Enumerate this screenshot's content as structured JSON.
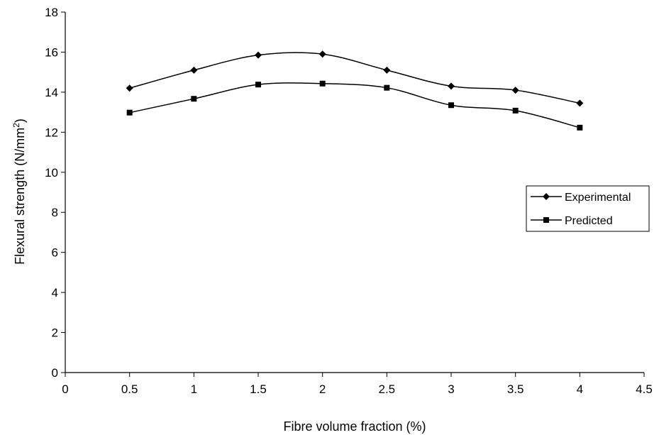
{
  "chart_data": {
    "type": "line",
    "xlabel": "Fibre volume fraction (%)",
    "ylabel": {
      "base": "Flexural strength (N/mm",
      "superscript": "2",
      "close": ")"
    },
    "xlim": [
      0,
      4.5
    ],
    "ylim": [
      0,
      18
    ],
    "x_ticks": [
      "0",
      "0.5",
      "1",
      "1.5",
      "2",
      "2.5",
      "3",
      "3.5",
      "4",
      "4.5"
    ],
    "y_ticks": [
      "0",
      "2",
      "4",
      "6",
      "8",
      "10",
      "12",
      "14",
      "16",
      "18"
    ],
    "x": [
      0.5,
      1,
      1.5,
      2,
      2.5,
      3,
      3.5,
      4
    ],
    "series": [
      {
        "name": "Experimental",
        "marker": "diamond",
        "color": "#000000",
        "values": [
          14.2,
          15.1,
          15.85,
          15.9,
          15.1,
          14.3,
          14.1,
          13.45
        ]
      },
      {
        "name": "Predicted",
        "marker": "square",
        "color": "#000000",
        "values": [
          12.98,
          13.67,
          14.38,
          14.43,
          14.22,
          13.35,
          13.08,
          12.23
        ]
      }
    ],
    "grid": false,
    "legend_position": "right"
  }
}
